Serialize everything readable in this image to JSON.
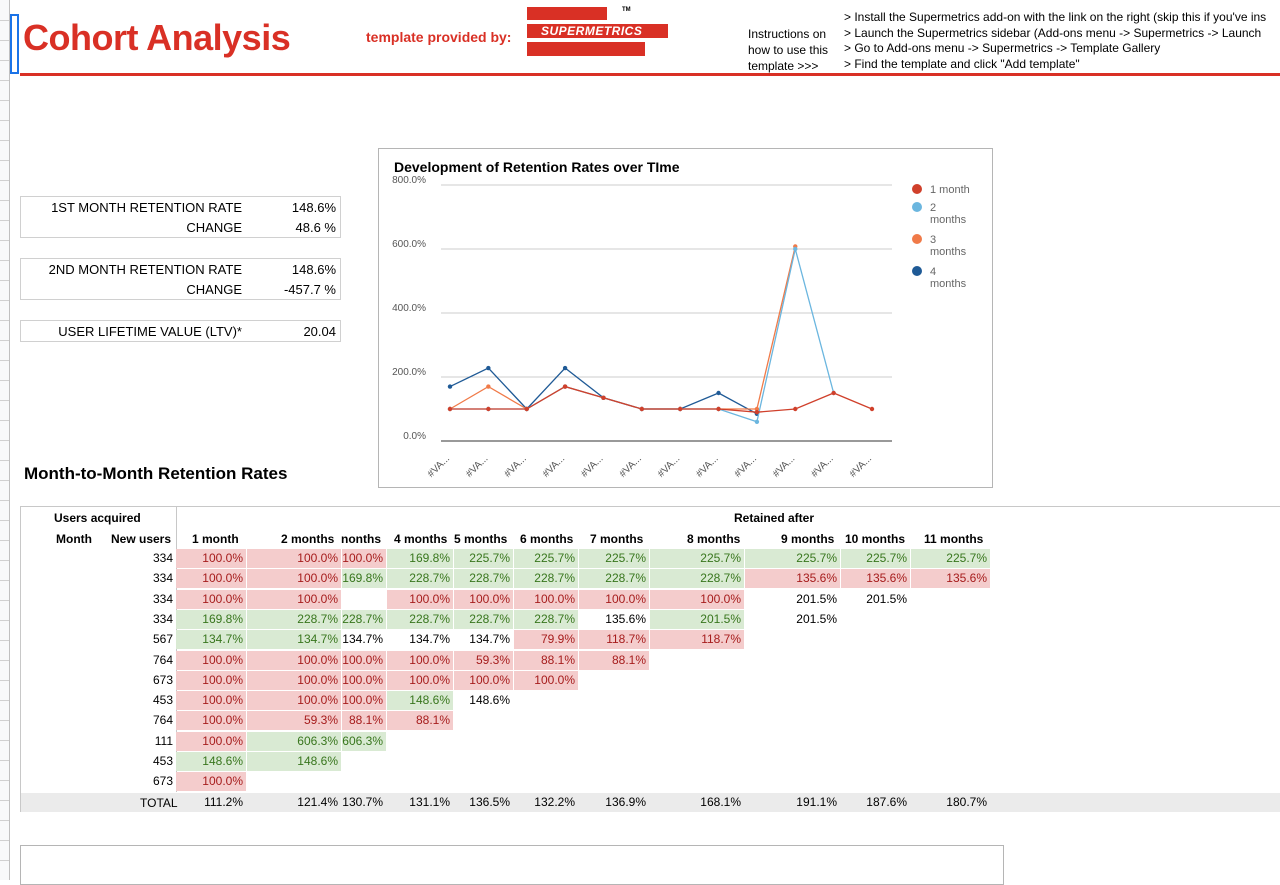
{
  "header": {
    "title": "Cohort Analysis",
    "provided_by": "template provided by:",
    "logo_text": "SUPERMETRICS",
    "logo_tm": "TM",
    "instructions_label": [
      "Instructions on",
      "how to use this",
      "template  >>>"
    ],
    "steps": [
      "> Install the Supermetrics add-on with the link on the right (skip this if you've ins",
      "> Launch the Supermetrics sidebar (Add-ons menu -> Supermetrics -> Launch",
      "> Go to Add-ons menu -> Supermetrics -> Template Gallery",
      "> Find the template and click \"Add template\""
    ]
  },
  "kpis": {
    "first_month_label": "1ST MONTH RETENTION RATE",
    "first_month_value": "148.6%",
    "change1_label": "CHANGE",
    "change1_value": "48.6 %",
    "second_month_label": "2ND MONTH RETENTION RATE",
    "second_month_value": "148.6%",
    "change2_label": "CHANGE",
    "change2_value": "-457.7 %",
    "ltv_label": "USER LIFETIME VALUE (LTV)*",
    "ltv_value": "20.04"
  },
  "chart_data": {
    "type": "line",
    "title": "Development of Retention Rates over TIme",
    "categories": [
      "#VA...",
      "#VA...",
      "#VA...",
      "#VA...",
      "#VA...",
      "#VA...",
      "#VA...",
      "#VA...",
      "#VA...",
      "#VA...",
      "#VA...",
      "#VA..."
    ],
    "y_ticks": [
      "800.0%",
      "600.0%",
      "400.0%",
      "200.0%",
      "0.0%"
    ],
    "ylim": [
      0,
      800
    ],
    "legend_position": "right",
    "series": [
      {
        "name": "1 month",
        "color": "#d0402b",
        "values": [
          100,
          100,
          100,
          170,
          135,
          100,
          100,
          100,
          90,
          100,
          150,
          100
        ]
      },
      {
        "name": "2 months",
        "color": "#6bb6df",
        "values": [
          100,
          100,
          100,
          170,
          135,
          100,
          100,
          100,
          60,
          600,
          150,
          null
        ]
      },
      {
        "name": "3 months",
        "color": "#f07a48",
        "values": [
          100,
          170,
          100,
          170,
          135,
          100,
          100,
          100,
          100,
          608,
          null,
          null
        ]
      },
      {
        "name": "4 months",
        "color": "#1f5a96",
        "values": [
          170,
          228,
          100,
          228,
          135,
          100,
          100,
          150,
          85,
          null,
          null,
          null
        ]
      }
    ]
  },
  "section_title": "Month-to-Month Retention Rates",
  "table": {
    "users_acquired": "Users acquired",
    "month_hdr": "Month",
    "new_users_hdr": "New users",
    "retained_after": "Retained after",
    "columns": [
      "1 month",
      "2 months",
      "nonths",
      "4 months",
      "5 months",
      "6 months",
      "7 months",
      "8 months",
      "9 months",
      "10 months",
      "11 months"
    ],
    "rows": [
      {
        "new_users": "334",
        "cells": [
          [
            "100.0%",
            "r"
          ],
          [
            "100.0%",
            "r"
          ],
          [
            "100.0%",
            "r"
          ],
          [
            "169.8%",
            "g"
          ],
          [
            "225.7%",
            "g"
          ],
          [
            "225.7%",
            "g"
          ],
          [
            "225.7%",
            "g"
          ],
          [
            "225.7%",
            "g"
          ],
          [
            "225.7%",
            "g"
          ],
          [
            "225.7%",
            "g"
          ],
          [
            "225.7%",
            "g"
          ]
        ]
      },
      {
        "new_users": "334",
        "cells": [
          [
            "100.0%",
            "r"
          ],
          [
            "100.0%",
            "r"
          ],
          [
            "169.8%",
            "g"
          ],
          [
            "228.7%",
            "g"
          ],
          [
            "228.7%",
            "g"
          ],
          [
            "228.7%",
            "g"
          ],
          [
            "228.7%",
            "g"
          ],
          [
            "228.7%",
            "g"
          ],
          [
            "135.6%",
            "r"
          ],
          [
            "135.6%",
            "r"
          ],
          [
            "135.6%",
            "r"
          ]
        ]
      },
      {
        "new_users": "334",
        "cells": [
          [
            "100.0%",
            "r"
          ],
          [
            "100.0%",
            "r"
          ],
          [
            "",
            ""
          ],
          [
            "100.0%",
            "r"
          ],
          [
            "100.0%",
            "r"
          ],
          [
            "100.0%",
            "r"
          ],
          [
            "100.0%",
            "r"
          ],
          [
            "100.0%",
            "r"
          ],
          [
            "201.5%",
            "p"
          ],
          [
            "201.5%",
            "p"
          ]
        ]
      },
      {
        "new_users": "334",
        "cells": [
          [
            "169.8%",
            "g"
          ],
          [
            "228.7%",
            "g"
          ],
          [
            "228.7%",
            "g"
          ],
          [
            "228.7%",
            "g"
          ],
          [
            "228.7%",
            "g"
          ],
          [
            "228.7%",
            "g"
          ],
          [
            "135.6%",
            "p"
          ],
          [
            "201.5%",
            "g"
          ],
          [
            "201.5%",
            "p"
          ]
        ]
      },
      {
        "new_users": "567",
        "cells": [
          [
            "134.7%",
            "g"
          ],
          [
            "134.7%",
            "g"
          ],
          [
            "134.7%",
            "p"
          ],
          [
            "134.7%",
            "p"
          ],
          [
            "134.7%",
            "p"
          ],
          [
            "79.9%",
            "r"
          ],
          [
            "118.7%",
            "r"
          ],
          [
            "118.7%",
            "r"
          ]
        ]
      },
      {
        "new_users": "764",
        "cells": [
          [
            "100.0%",
            "r"
          ],
          [
            "100.0%",
            "r"
          ],
          [
            "100.0%",
            "r"
          ],
          [
            "100.0%",
            "r"
          ],
          [
            "59.3%",
            "r"
          ],
          [
            "88.1%",
            "r"
          ],
          [
            "88.1%",
            "r"
          ]
        ]
      },
      {
        "new_users": "673",
        "cells": [
          [
            "100.0%",
            "r"
          ],
          [
            "100.0%",
            "r"
          ],
          [
            "100.0%",
            "r"
          ],
          [
            "100.0%",
            "r"
          ],
          [
            "100.0%",
            "r"
          ],
          [
            "100.0%",
            "r"
          ]
        ]
      },
      {
        "new_users": "453",
        "cells": [
          [
            "100.0%",
            "r"
          ],
          [
            "100.0%",
            "r"
          ],
          [
            "100.0%",
            "r"
          ],
          [
            "148.6%",
            "g"
          ],
          [
            "148.6%",
            "p"
          ]
        ]
      },
      {
        "new_users": "764",
        "cells": [
          [
            "100.0%",
            "r"
          ],
          [
            "59.3%",
            "r"
          ],
          [
            "88.1%",
            "r"
          ],
          [
            "88.1%",
            "r"
          ]
        ]
      },
      {
        "new_users": "111",
        "cells": [
          [
            "100.0%",
            "r"
          ],
          [
            "606.3%",
            "g"
          ],
          [
            "606.3%",
            "g"
          ]
        ]
      },
      {
        "new_users": "453",
        "cells": [
          [
            "148.6%",
            "g"
          ],
          [
            "148.6%",
            "g"
          ]
        ]
      },
      {
        "new_users": "673",
        "cells": [
          [
            "100.0%",
            "r"
          ]
        ]
      }
    ],
    "total_label": "TOTAL",
    "totals": [
      "111.2%",
      "121.4%",
      "130.7%",
      "131.1%",
      "136.5%",
      "132.2%",
      "136.9%",
      "168.1%",
      "191.1%",
      "187.6%",
      "180.7%"
    ]
  }
}
